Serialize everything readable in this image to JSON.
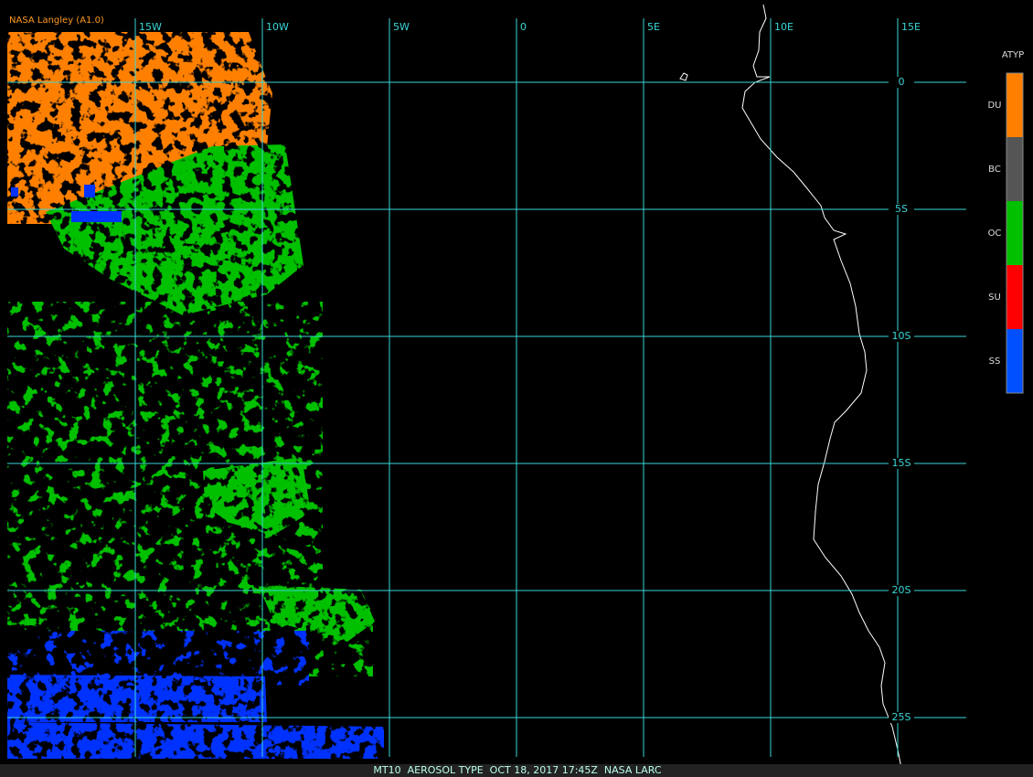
{
  "header": {
    "source": "NASA Langley (A1.0)"
  },
  "map": {
    "longitude_labels": [
      "15W",
      "10W",
      "5W",
      "0",
      "5E",
      "10E",
      "15E"
    ],
    "latitude_labels": [
      "0",
      "5S",
      "10S",
      "15S",
      "20S",
      "25S"
    ]
  },
  "legend": {
    "title": "ATYP",
    "items": [
      {
        "label": "DU",
        "color": "#ff8000"
      },
      {
        "label": "BC",
        "color": "#555555"
      },
      {
        "label": "OC",
        "color": "#00c000"
      },
      {
        "label": "SU",
        "color": "#ff0000"
      },
      {
        "label": "SS",
        "color": "#0050ff"
      }
    ]
  },
  "footer": {
    "caption": "MT10  AEROSOL TYPE  OCT 18, 2017 17:45Z  NASA LARC"
  }
}
